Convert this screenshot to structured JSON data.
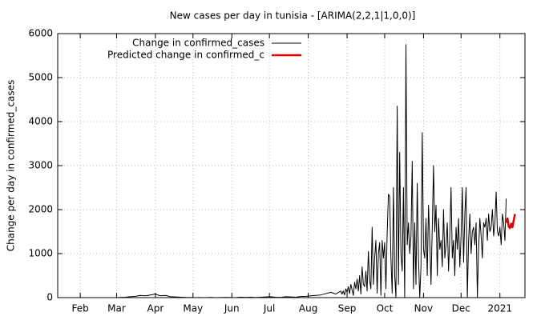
{
  "chart_data": {
    "type": "line",
    "title": "New cases per day in tunisia -  [ARIMA(2,2,1|1,0,0)]",
    "y_label": "Change per day in confirmed_cases",
    "xlim": [
      0,
      373
    ],
    "xticks": [
      {
        "value": 18,
        "label": "Feb"
      },
      {
        "value": 47,
        "label": "Mar"
      },
      {
        "value": 78,
        "label": "Apr"
      },
      {
        "value": 108,
        "label": "May"
      },
      {
        "value": 139,
        "label": "Jun"
      },
      {
        "value": 169,
        "label": "Jul"
      },
      {
        "value": 200,
        "label": "Aug"
      },
      {
        "value": 231,
        "label": "Sep"
      },
      {
        "value": 261,
        "label": "Oct"
      },
      {
        "value": 292,
        "label": "Nov"
      },
      {
        "value": 322,
        "label": "Dec"
      },
      {
        "value": 353,
        "label": "2021"
      }
    ],
    "ylim": [
      0,
      6000
    ],
    "yticks": [
      0,
      1000,
      2000,
      3000,
      4000,
      5000,
      6000
    ],
    "grid": true,
    "legend": "top-left",
    "series": [
      {
        "name": "Change in confirmed_cases",
        "color": "#000000",
        "x": [
          46,
          50,
          54,
          58,
          62,
          66,
          70,
          74,
          78,
          82,
          86,
          90,
          94,
          98,
          102,
          106,
          110,
          114,
          118,
          122,
          126,
          130,
          134,
          138,
          142,
          146,
          150,
          154,
          158,
          162,
          166,
          170,
          174,
          178,
          182,
          186,
          190,
          194,
          198,
          202,
          206,
          210,
          214,
          218,
          222,
          226,
          227,
          228,
          229,
          230,
          231,
          232,
          233,
          234,
          235,
          236,
          237,
          238,
          239,
          240,
          241,
          242,
          243,
          244,
          245,
          246,
          247,
          248,
          249,
          250,
          251,
          252,
          253,
          254,
          255,
          256,
          257,
          258,
          259,
          260,
          261,
          262,
          263,
          264,
          265,
          266,
          267,
          268,
          269,
          270,
          271,
          272,
          273,
          274,
          275,
          276,
          277,
          278,
          279,
          280,
          281,
          282,
          283,
          284,
          285,
          286,
          287,
          288,
          289,
          290,
          291,
          292,
          293,
          294,
          295,
          296,
          297,
          298,
          299,
          300,
          301,
          302,
          303,
          304,
          305,
          306,
          307,
          308,
          309,
          310,
          311,
          312,
          313,
          314,
          315,
          316,
          317,
          318,
          319,
          320,
          321,
          322,
          323,
          324,
          325,
          326,
          327,
          328,
          329,
          330,
          331,
          332,
          333,
          334,
          335,
          336,
          337,
          338,
          339,
          340,
          341,
          342,
          343,
          344,
          345,
          346,
          347,
          348,
          349,
          350,
          351,
          352,
          353,
          354,
          355,
          356,
          357,
          358
        ],
        "values": [
          0,
          5,
          10,
          20,
          30,
          50,
          40,
          60,
          80,
          40,
          50,
          20,
          15,
          10,
          5,
          3,
          0,
          2,
          0,
          5,
          0,
          3,
          5,
          2,
          0,
          10,
          5,
          8,
          3,
          10,
          15,
          20,
          10,
          5,
          20,
          15,
          10,
          25,
          30,
          40,
          50,
          60,
          90,
          120,
          80,
          150,
          80,
          150,
          60,
          200,
          120,
          250,
          90,
          300,
          180,
          50,
          350,
          200,
          420,
          150,
          500,
          80,
          700,
          300,
          250,
          600,
          150,
          1050,
          400,
          200,
          1600,
          300,
          900,
          1300,
          100,
          1000,
          1250,
          50,
          1300,
          900,
          1250,
          200,
          1450,
          2350,
          2300,
          900,
          100,
          2500,
          500,
          0,
          4350,
          300,
          3300,
          1000,
          600,
          2500,
          0,
          5750,
          1200,
          1700,
          1000,
          1400,
          3100,
          200,
          1700,
          300,
          2600,
          900,
          0,
          700,
          3750,
          1100,
          900,
          1800,
          500,
          2100,
          1300,
          300,
          1600,
          3000,
          1500,
          2100,
          500,
          1800,
          1100,
          1300,
          700,
          2000,
          900,
          1200,
          1700,
          600,
          1400,
          2500,
          900,
          1300,
          500,
          1600,
          1100,
          1800,
          700,
          1400,
          2500,
          800,
          1900,
          2500,
          0,
          1300,
          1900,
          1000,
          1500,
          1600,
          1200,
          1700,
          0,
          1100,
          1800,
          1400,
          900,
          1700,
          1600,
          1800,
          1300,
          1900,
          1500,
          1600,
          2000,
          1400,
          1700,
          2400,
          1500,
          1400,
          1600,
          1200,
          1900,
          1700,
          1300,
          2250
        ]
      },
      {
        "name": "Predicted change in confirmed_c",
        "color": "#e00000",
        "x": [
          358,
          359,
          360,
          361,
          362,
          363,
          364,
          365
        ],
        "values": [
          1700,
          1800,
          1620,
          1580,
          1680,
          1600,
          1750,
          1900
        ]
      }
    ]
  }
}
